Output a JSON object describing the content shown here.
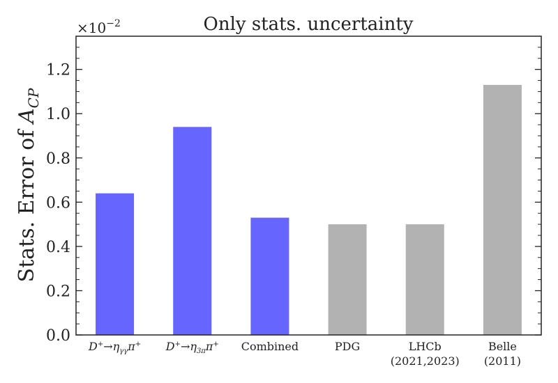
{
  "chart_data": {
    "type": "bar",
    "title": "Only stats. uncertainty",
    "ylabel": {
      "text": "Stats. Error of ",
      "symbol": "A",
      "subscript": "CP"
    },
    "axis_multiplier": {
      "base": "×10",
      "exponent": "−2"
    },
    "ylim": [
      0,
      1.35
    ],
    "yticks": [
      "0.0",
      "0.2",
      "0.4",
      "0.6",
      "0.8",
      "1.0",
      "1.2"
    ],
    "categories": [
      {
        "parts": [
          [
            "D",
            "i"
          ],
          [
            "+",
            "sup"
          ],
          [
            "→",
            "n"
          ],
          [
            "η",
            "i"
          ],
          [
            "γγ",
            "sub"
          ],
          [
            "π",
            "i"
          ],
          [
            "+",
            "sup"
          ]
        ]
      },
      {
        "parts": [
          [
            "D",
            "i"
          ],
          [
            "+",
            "sup"
          ],
          [
            "→",
            "n"
          ],
          [
            "η",
            "i"
          ],
          [
            "3π",
            "sub"
          ],
          [
            "π",
            "i"
          ],
          [
            "+",
            "sup"
          ]
        ]
      },
      {
        "lines": [
          "Combined"
        ]
      },
      {
        "lines": [
          "PDG"
        ]
      },
      {
        "lines": [
          "LHCb",
          "(2021,2023)"
        ]
      },
      {
        "lines": [
          "Belle",
          "(2011)"
        ]
      }
    ],
    "values": [
      0.64,
      0.94,
      0.53,
      0.5,
      0.5,
      1.13
    ],
    "bar_colors": [
      "#6666ff",
      "#6666ff",
      "#6666ff",
      "#b2b2b2",
      "#b2b2b2",
      "#b2b2b2"
    ],
    "grid": false,
    "legend": "none"
  }
}
